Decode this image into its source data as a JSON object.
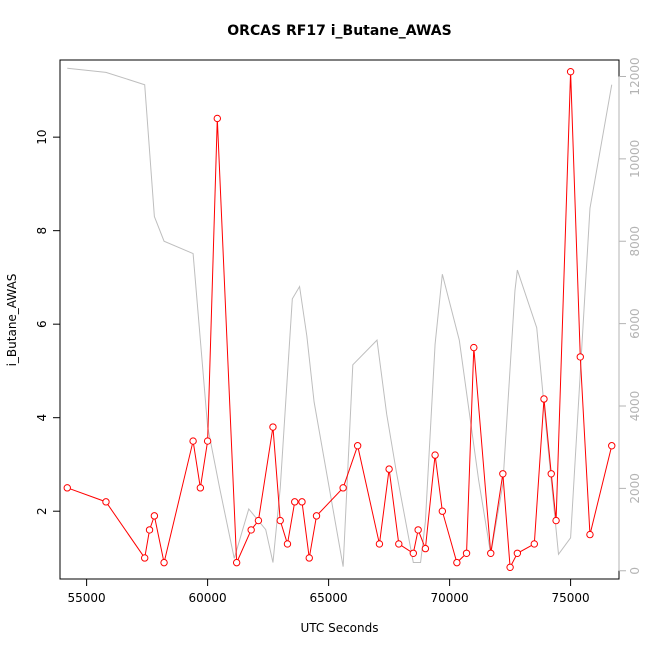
{
  "chart_data": {
    "type": "line",
    "title": "ORCAS RF17 i_Butane_AWAS",
    "xlabel": "UTC Seconds",
    "ylabel": "i_Butane_AWAS",
    "xlim": [
      53900,
      77000
    ],
    "ylim": [
      0.55,
      11.65
    ],
    "y2lim": [
      -200,
      12400
    ],
    "xticks": [
      55000,
      60000,
      65000,
      70000,
      75000
    ],
    "yticks": [
      2,
      4,
      6,
      8,
      10
    ],
    "y2ticks": [
      0,
      2000,
      4000,
      6000,
      8000,
      10000,
      12000
    ],
    "colors": {
      "series": "#ff0000",
      "altitude": "#bebebe"
    },
    "series": [
      {
        "axis": "left",
        "style": "line+points",
        "x": [
          54200,
          55800,
          57400,
          57600,
          57800,
          58200,
          59400,
          59700,
          60000,
          60400,
          61200,
          61800,
          62100,
          62700,
          63000,
          63300,
          63600,
          63900,
          64200,
          64500,
          65600,
          66200,
          67100,
          67500,
          67900,
          68500,
          68700,
          69000,
          69400,
          69700,
          70300,
          70700,
          71000,
          71700,
          72200,
          72500,
          72800,
          73500,
          73900,
          74200,
          74400,
          75000,
          75400,
          75800,
          76700
        ],
        "y": [
          2.5,
          2.2,
          1.0,
          1.6,
          1.9,
          0.9,
          3.5,
          2.5,
          3.5,
          10.4,
          0.9,
          1.6,
          1.8,
          3.8,
          1.8,
          1.3,
          2.2,
          2.2,
          1.0,
          1.9,
          2.5,
          3.4,
          1.3,
          2.9,
          1.3,
          1.1,
          1.6,
          1.2,
          3.2,
          2.0,
          0.9,
          1.1,
          5.5,
          1.1,
          2.8,
          0.8,
          1.1,
          1.3,
          4.4,
          2.8,
          1.8,
          11.4,
          5.3,
          1.5,
          3.4
        ]
      },
      {
        "axis": "right",
        "style": "line",
        "x": [
          54200,
          55800,
          57400,
          57800,
          58200,
          59400,
          60000,
          60500,
          61100,
          61700,
          62400,
          62700,
          63000,
          63500,
          63800,
          64100,
          64400,
          65600,
          66000,
          67000,
          67400,
          67800,
          68500,
          68800,
          69000,
          69400,
          69700,
          70400,
          71200,
          71700,
          72200,
          72700,
          72800,
          73600,
          74000,
          74500,
          75000,
          75800,
          76700
        ],
        "y": [
          12200,
          12100,
          11800,
          8600,
          8000,
          7700,
          3500,
          2000,
          300,
          1500,
          1000,
          200,
          2000,
          6600,
          6900,
          5700,
          4100,
          100,
          5000,
          5600,
          3800,
          2400,
          200,
          200,
          1200,
          5500,
          7200,
          5600,
          2200,
          400,
          2100,
          6800,
          7300,
          5900,
          3400,
          400,
          800,
          8800,
          11800
        ]
      }
    ]
  }
}
